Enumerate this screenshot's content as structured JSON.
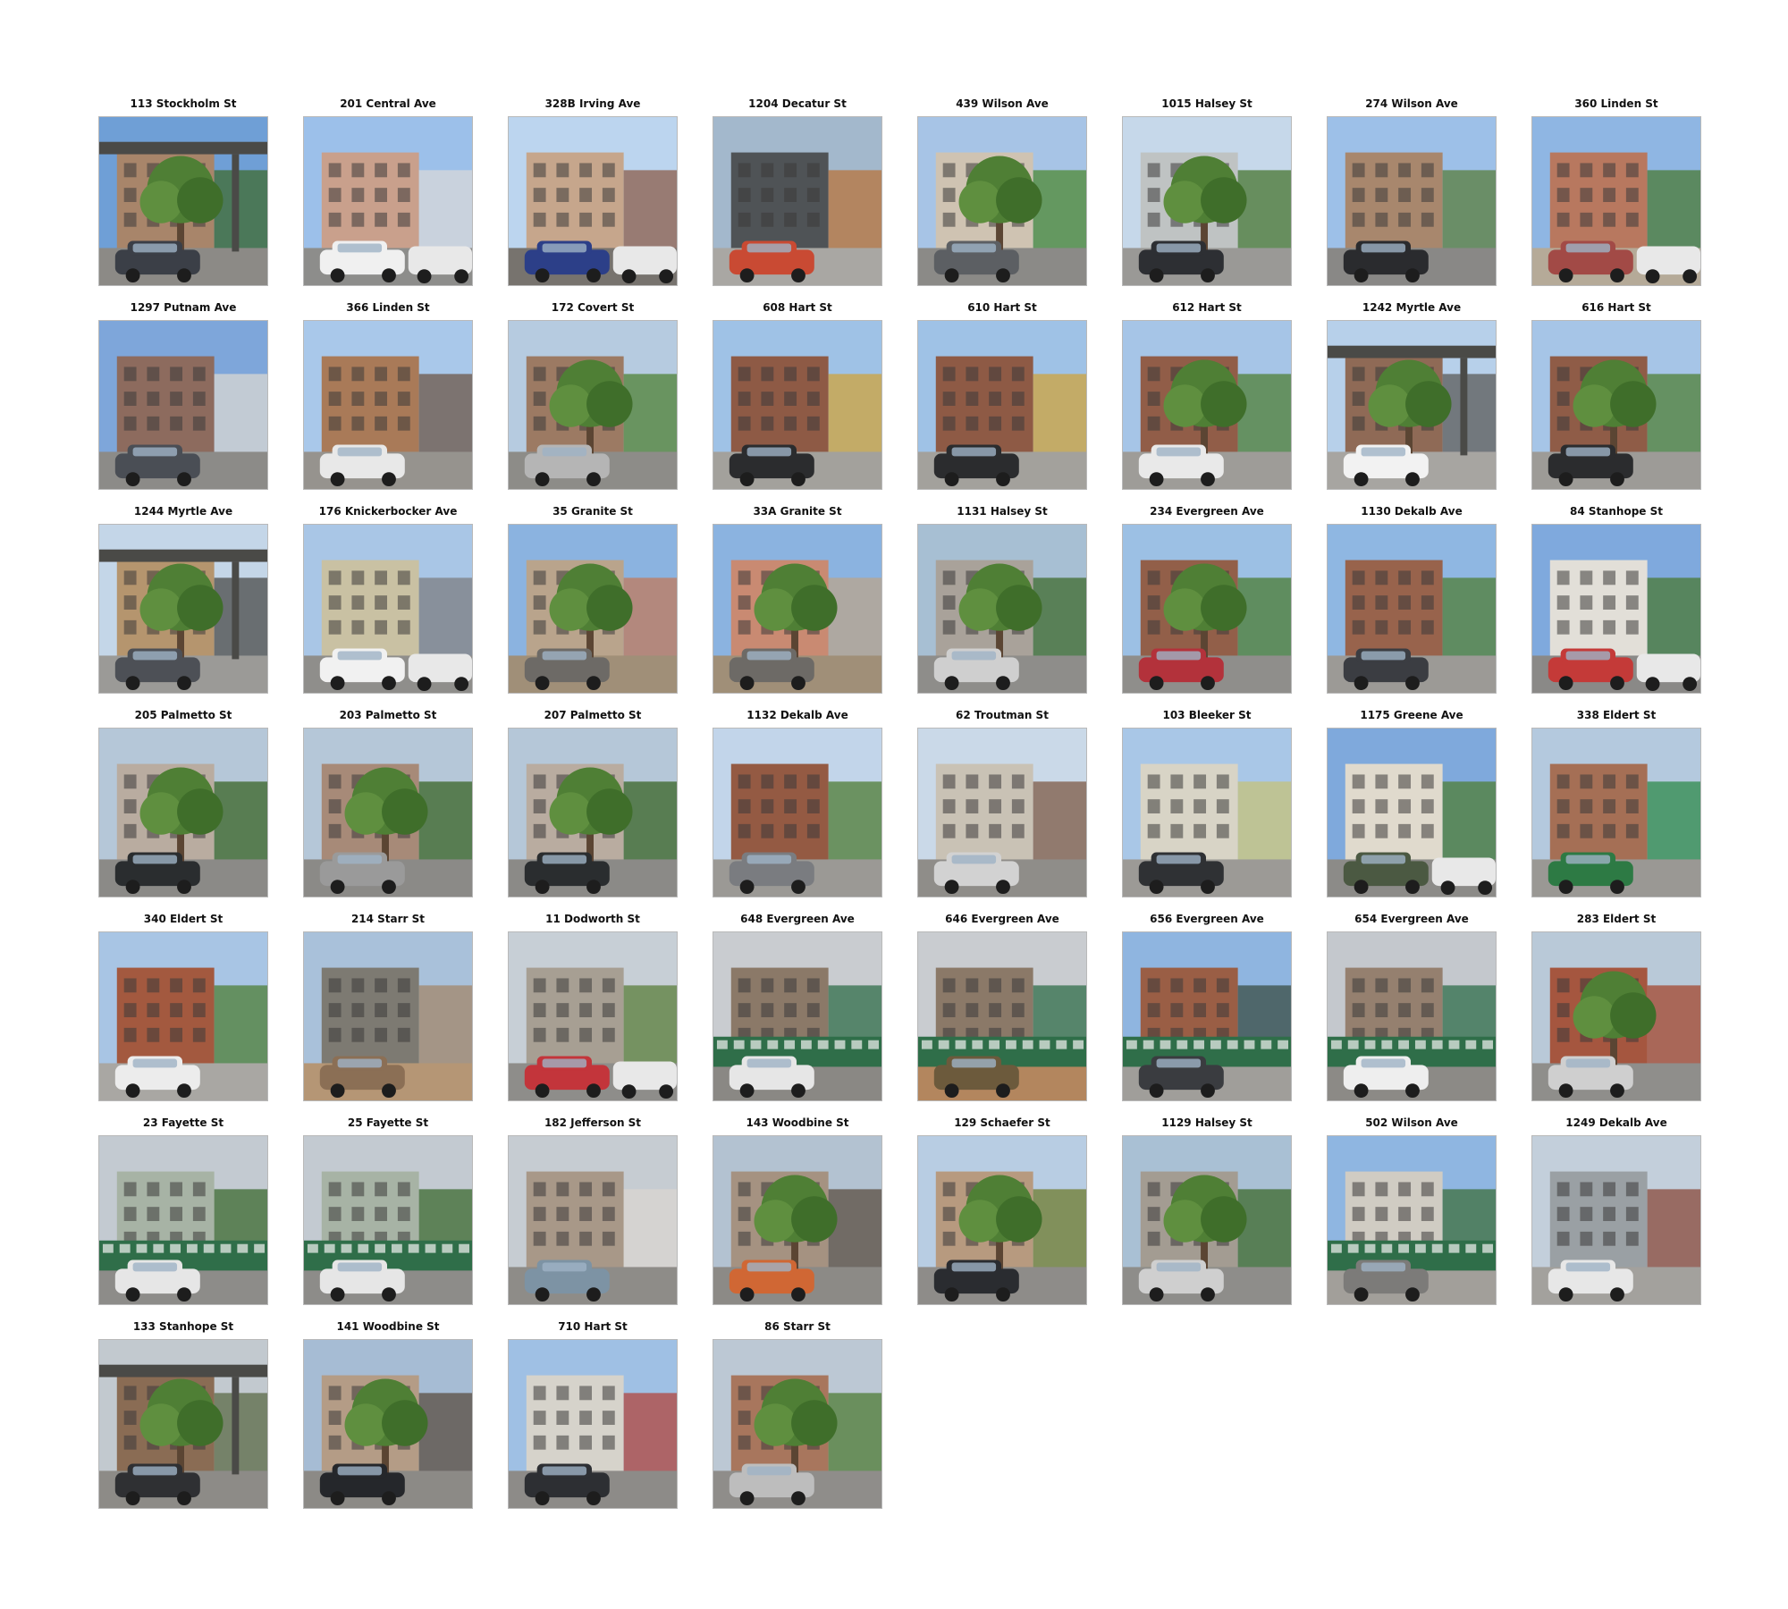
{
  "photos": [
    {
      "caption": "113 Stockholm St",
      "palette": {
        "sky": "#6f9fd6",
        "bldg": "#a8856a",
        "accent": "#3f6b2f",
        "ground": "#8c8a86",
        "car": "#3b3f47"
      },
      "motif": "tree-el"
    },
    {
      "caption": "201 Central Ave",
      "palette": {
        "sky": "#9cc0ea",
        "bldg": "#c9a08c",
        "accent": "#d8d8d8",
        "ground": "#8d8d8b",
        "car": "#f0f0f0"
      },
      "motif": "car"
    },
    {
      "caption": "328B Irving Ave",
      "palette": {
        "sky": "#bcd5ef",
        "bldg": "#c6a68c",
        "accent": "#8c5c49",
        "ground": "#77736e",
        "car": "#2c3f88"
      },
      "motif": "car"
    },
    {
      "caption": "1204 Decatur St",
      "palette": {
        "sky": "#a3b8cc",
        "bldg": "#4f5356",
        "accent": "#b8743c",
        "ground": "#a9a7a3",
        "car": "#c94a33"
      },
      "motif": "building"
    },
    {
      "caption": "439 Wilson Ave",
      "palette": {
        "sky": "#a7c4e6",
        "bldg": "#cfc3b2",
        "accent": "#4e8a33",
        "ground": "#8b8a87",
        "car": "#5c5f63"
      },
      "motif": "tree"
    },
    {
      "caption": "1015 Halsey St",
      "palette": {
        "sky": "#c6d8ea",
        "bldg": "#bfc3c3",
        "accent": "#47752f",
        "ground": "#9a9996",
        "car": "#2d2f33"
      },
      "motif": "tree"
    },
    {
      "caption": "274 Wilson Ave",
      "palette": {
        "sky": "#9dc0e8",
        "bldg": "#a8876d",
        "accent": "#5a7d3c",
        "ground": "#898886",
        "car": "#2a2b2e"
      },
      "motif": "building"
    },
    {
      "caption": "360 Linden St",
      "palette": {
        "sky": "#8fb6e3",
        "bldg": "#b8785f",
        "accent": "#497a34",
        "ground": "#b5aa98",
        "car": "#a24a46"
      },
      "motif": "car"
    },
    {
      "caption": "1297 Putnam Ave",
      "palette": {
        "sky": "#7ea6da",
        "bldg": "#8d6b5e",
        "accent": "#d9d7d2",
        "ground": "#8c8b88",
        "car": "#4a4e55"
      },
      "motif": "building"
    },
    {
      "caption": "366 Linden St",
      "palette": {
        "sky": "#a9c8ea",
        "bldg": "#a97a58",
        "accent": "#6e5747",
        "ground": "#96938e",
        "car": "#e8e8e8"
      },
      "motif": "building"
    },
    {
      "caption": "172 Covert St",
      "palette": {
        "sky": "#b6cbe0",
        "bldg": "#9c7a63",
        "accent": "#4f8236",
        "ground": "#8d8c88",
        "car": "#b5b5b5"
      },
      "motif": "tree"
    },
    {
      "caption": "608 Hart St",
      "palette": {
        "sky": "#9fc2e6",
        "bldg": "#8e5a45",
        "accent": "#cfa33c",
        "ground": "#a3a19c",
        "car": "#2b2c2e"
      },
      "motif": "building"
    },
    {
      "caption": "610 Hart St",
      "palette": {
        "sky": "#9fc2e6",
        "bldg": "#8e5a45",
        "accent": "#cfa33c",
        "ground": "#a3a19c",
        "car": "#2b2c2e"
      },
      "motif": "building"
    },
    {
      "caption": "612 Hart St",
      "palette": {
        "sky": "#a6c5e7",
        "bldg": "#915d48",
        "accent": "#4f7f35",
        "ground": "#9e9c98",
        "car": "#e9e9e9"
      },
      "motif": "tree"
    },
    {
      "caption": "1242 Myrtle Ave",
      "palette": {
        "sky": "#b7d0ea",
        "bldg": "#8f6a56",
        "accent": "#5b5b58",
        "ground": "#a7a5a1",
        "car": "#f2f2f2"
      },
      "motif": "tree-el"
    },
    {
      "caption": "616 Hart St",
      "palette": {
        "sky": "#a6c5e7",
        "bldg": "#8f5c47",
        "accent": "#4f7f35",
        "ground": "#9d9b97",
        "car": "#2b2c2e"
      },
      "motif": "tree"
    },
    {
      "caption": "1244 Myrtle Ave",
      "palette": {
        "sky": "#c4d6e8",
        "bldg": "#b5956e",
        "accent": "#4b4b49",
        "ground": "#9b9a97",
        "car": "#4d5056"
      },
      "motif": "tree-el"
    },
    {
      "caption": "176 Knickerbocker Ave",
      "palette": {
        "sky": "#a9c6e6",
        "bldg": "#c9c1a3",
        "accent": "#7d7e82",
        "ground": "#8f8e8b",
        "car": "#f1f1f1"
      },
      "motif": "car"
    },
    {
      "caption": "35 Granite St",
      "palette": {
        "sky": "#8bb3e0",
        "bldg": "#b9a48c",
        "accent": "#c07a5c",
        "ground": "#a08f78",
        "car": "#6d6a66"
      },
      "motif": "tree"
    },
    {
      "caption": "33A Granite St",
      "palette": {
        "sky": "#8bb3e0",
        "bldg": "#c98a72",
        "accent": "#b9a48c",
        "ground": "#a08f78",
        "car": "#6d6a66"
      },
      "motif": "tree"
    },
    {
      "caption": "1131 Halsey St",
      "palette": {
        "sky": "#a7bfd3",
        "bldg": "#a9a29a",
        "accent": "#3f6b2d",
        "ground": "#8e8d8a",
        "car": "#cfcfcf"
      },
      "motif": "tree"
    },
    {
      "caption": "234 Evergreen Ave",
      "palette": {
        "sky": "#9cc0e4",
        "bldg": "#925f49",
        "accent": "#4b7c33",
        "ground": "#8f8e8b",
        "car": "#b3323b"
      },
      "motif": "tree"
    },
    {
      "caption": "1130 Dekalb Ave",
      "palette": {
        "sky": "#8fb7e2",
        "bldg": "#98634c",
        "accent": "#4f7d35",
        "ground": "#9c9a96",
        "car": "#3b3d42"
      },
      "motif": "building"
    },
    {
      "caption": "84 Stanhope St",
      "palette": {
        "sky": "#7fa9dd",
        "bldg": "#e2dfd8",
        "accent": "#4a7a33",
        "ground": "#8a8987",
        "car": "#c43a38"
      },
      "motif": "car"
    },
    {
      "caption": "205 Palmetto St",
      "palette": {
        "sky": "#b5c7d8",
        "bldg": "#b9aca0",
        "accent": "#3a6426",
        "ground": "#8b8a87",
        "car": "#2a2d2f"
      },
      "motif": "tree"
    },
    {
      "caption": "203 Palmetto St",
      "palette": {
        "sky": "#b5c7d8",
        "bldg": "#a78a78",
        "accent": "#3a6426",
        "ground": "#8b8a87",
        "car": "#9a9a9a"
      },
      "motif": "tree"
    },
    {
      "caption": "207 Palmetto St",
      "palette": {
        "sky": "#b5c7d8",
        "bldg": "#b9aca0",
        "accent": "#3a6426",
        "ground": "#8b8a87",
        "car": "#2a2d2f"
      },
      "motif": "tree"
    },
    {
      "caption": "1132 Dekalb Ave",
      "palette": {
        "sky": "#c2d5ea",
        "bldg": "#945a43",
        "accent": "#4e7b33",
        "ground": "#9b9995",
        "car": "#7a7c80"
      },
      "motif": "building"
    },
    {
      "caption": "62 Troutman St",
      "palette": {
        "sky": "#cad9e8",
        "bldg": "#c9c2b5",
        "accent": "#7d5a46",
        "ground": "#8f8d89",
        "car": "#d2d2d2"
      },
      "motif": "building"
    },
    {
      "caption": "103 Bleeker St",
      "palette": {
        "sky": "#a9c7e7",
        "bldg": "#d8d4c6",
        "accent": "#c6c17a",
        "ground": "#9c9a96",
        "car": "#2f3134"
      },
      "motif": "building"
    },
    {
      "caption": "1175 Greene Ave",
      "palette": {
        "sky": "#7fa9dc",
        "bldg": "#e0dacd",
        "accent": "#4f7f36",
        "ground": "#8c8b88",
        "car": "#4b5942"
      },
      "motif": "car"
    },
    {
      "caption": "338 Eldert St",
      "palette": {
        "sky": "#b4c9de",
        "bldg": "#a56f55",
        "accent": "#2f8a4b",
        "ground": "#9a9894",
        "car": "#2d7a44"
      },
      "motif": "building"
    },
    {
      "caption": "340 Eldert St",
      "palette": {
        "sky": "#a8c5e4",
        "bldg": "#a3593f",
        "accent": "#4e7d36",
        "ground": "#a9a7a3",
        "car": "#ececec"
      },
      "motif": "building"
    },
    {
      "caption": "214 Starr St",
      "palette": {
        "sky": "#a9c1da",
        "bldg": "#7d7a72",
        "accent": "#a3856a",
        "ground": "#b59675",
        "car": "#8b6f55"
      },
      "motif": "building"
    },
    {
      "caption": "11 Dodworth St",
      "palette": {
        "sky": "#c7cfd6",
        "bldg": "#a79f93",
        "accent": "#5a7e39",
        "ground": "#8e8d8a",
        "car": "#c3353b"
      },
      "motif": "car"
    },
    {
      "caption": "648 Evergreen Ave",
      "palette": {
        "sky": "#c9ccd0",
        "bldg": "#8b7968",
        "accent": "#2f6e49",
        "ground": "#8a8884",
        "car": "#e6e6e6"
      },
      "motif": "fence"
    },
    {
      "caption": "646 Evergreen Ave",
      "palette": {
        "sky": "#c9ccd0",
        "bldg": "#8b7968",
        "accent": "#2f6e49",
        "ground": "#b3865e",
        "car": "#6c5a3c"
      },
      "motif": "fence"
    },
    {
      "caption": "656 Evergreen Ave",
      "palette": {
        "sky": "#8fb5e0",
        "bldg": "#9a5e45",
        "accent": "#3a4d44",
        "ground": "#a09e9a",
        "car": "#3a3c40"
      },
      "motif": "fence"
    },
    {
      "caption": "654 Evergreen Ave",
      "palette": {
        "sky": "#c4c8cd",
        "bldg": "#95806f",
        "accent": "#2f6e49",
        "ground": "#8c8a86",
        "car": "#eeeeee"
      },
      "motif": "fence"
    },
    {
      "caption": "283 Eldert St",
      "palette": {
        "sky": "#b9c9d8",
        "bldg": "#a5563f",
        "accent": "#a4452d",
        "ground": "#8f8e8b",
        "car": "#cfcfcf"
      },
      "motif": "tree"
    },
    {
      "caption": "23 Fayette St",
      "palette": {
        "sky": "#c3cad1",
        "bldg": "#a7b3a5",
        "accent": "#3c6a2f",
        "ground": "#8d8c89",
        "car": "#e6e6e6"
      },
      "motif": "fence"
    },
    {
      "caption": "25 Fayette St",
      "palette": {
        "sky": "#c3cad1",
        "bldg": "#a7b3a5",
        "accent": "#3c6a2f",
        "ground": "#8d8c89",
        "car": "#e6e6e6"
      },
      "motif": "fence"
    },
    {
      "caption": "182 Jefferson St",
      "palette": {
        "sky": "#c6ccd2",
        "bldg": "#a89888",
        "accent": "#d9d6d0",
        "ground": "#8e8c88",
        "car": "#7d93a4"
      },
      "motif": "building"
    },
    {
      "caption": "143 Woodbine St",
      "palette": {
        "sky": "#b3c2d1",
        "bldg": "#a59281",
        "accent": "#5b4d40",
        "ground": "#8c8a86",
        "car": "#d06734"
      },
      "motif": "tree"
    },
    {
      "caption": "129 Schaefer St",
      "palette": {
        "sky": "#b8cde3",
        "bldg": "#b79a7f",
        "accent": "#6f7b2d",
        "ground": "#8e8c89",
        "car": "#2a2c30"
      },
      "motif": "tree"
    },
    {
      "caption": "1129 Halsey St",
      "palette": {
        "sky": "#a9c0d4",
        "bldg": "#a39c92",
        "accent": "#3d6a2c",
        "ground": "#8e8d8a",
        "car": "#cfcfcf"
      },
      "motif": "tree"
    },
    {
      "caption": "502 Wilson Ave",
      "palette": {
        "sky": "#8fb6e1",
        "bldg": "#d0ccc3",
        "accent": "#3e6f3c",
        "ground": "#a29f9a",
        "car": "#7c7b79"
      },
      "motif": "fence"
    },
    {
      "caption": "1249 Dekalb Ave",
      "palette": {
        "sky": "#c3cfdb",
        "bldg": "#9aa0a4",
        "accent": "#8a4a3b",
        "ground": "#a3a19d",
        "car": "#e7e7e7"
      },
      "motif": "building"
    },
    {
      "caption": "133 Stanhope St",
      "palette": {
        "sky": "#c2c9cf",
        "bldg": "#8a6c54",
        "accent": "#5b6a47",
        "ground": "#8d8b87",
        "car": "#2f3033"
      },
      "motif": "tree-el"
    },
    {
      "caption": "141 Woodbine St",
      "palette": {
        "sky": "#a6bcd4",
        "bldg": "#b49c86",
        "accent": "#5a4d41",
        "ground": "#8c8a86",
        "car": "#25272b"
      },
      "motif": "tree"
    },
    {
      "caption": "710 Hart St",
      "palette": {
        "sky": "#9fc0e4",
        "bldg": "#d6d3cb",
        "accent": "#b2463d",
        "ground": "#8d8b88",
        "car": "#2d2f33"
      },
      "motif": "building"
    },
    {
      "caption": "86 Starr St",
      "palette": {
        "sky": "#bcc8d4",
        "bldg": "#a8765d",
        "accent": "#4f7c35",
        "ground": "#8f8d8a",
        "car": "#bdbdbd"
      },
      "motif": "tree"
    }
  ]
}
